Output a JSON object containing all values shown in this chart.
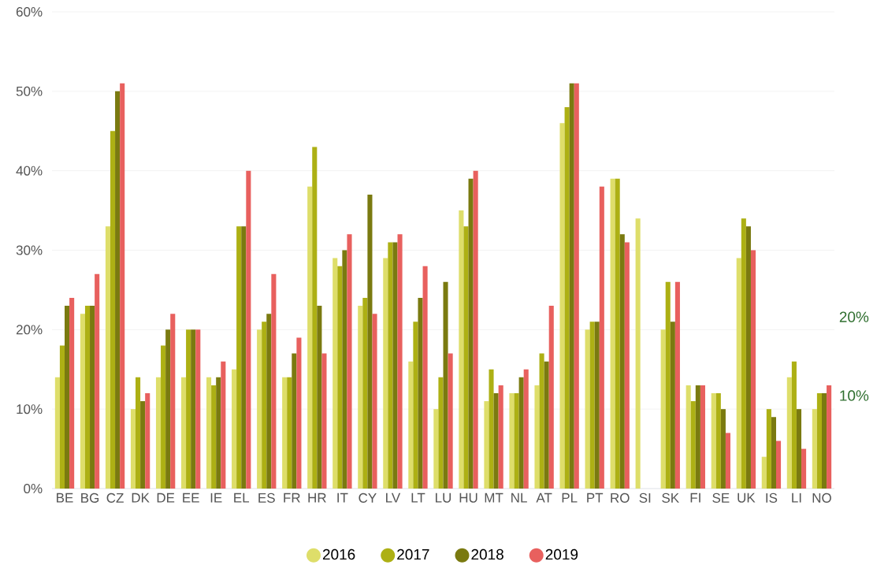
{
  "chart_data": {
    "type": "bar",
    "categories": [
      "BE",
      "BG",
      "CZ",
      "DK",
      "DE",
      "EE",
      "IE",
      "EL",
      "ES",
      "FR",
      "HR",
      "IT",
      "CY",
      "LV",
      "LT",
      "LU",
      "HU",
      "MT",
      "NL",
      "AT",
      "PL",
      "PT",
      "RO",
      "SI",
      "SK",
      "FI",
      "SE",
      "UK",
      "IS",
      "LI",
      "NO"
    ],
    "series": [
      {
        "name": "2016",
        "color": "#dede6a",
        "values": [
          14,
          22,
          33,
          10,
          14,
          14,
          14,
          15,
          20,
          14,
          38,
          29,
          23,
          29,
          16,
          10,
          35,
          11,
          12,
          13,
          46,
          20,
          39,
          34,
          20,
          13,
          12,
          29,
          4,
          14,
          10
        ]
      },
      {
        "name": "2017",
        "color": "#adb014",
        "values": [
          18,
          23,
          45,
          14,
          18,
          20,
          13,
          33,
          21,
          14,
          43,
          28,
          24,
          31,
          21,
          14,
          33,
          15,
          12,
          17,
          48,
          21,
          39,
          null,
          26,
          11,
          12,
          34,
          10,
          16,
          12
        ]
      },
      {
        "name": "2018",
        "color": "#7a7a10",
        "values": [
          23,
          23,
          50,
          11,
          20,
          20,
          14,
          33,
          22,
          17,
          23,
          30,
          37,
          31,
          24,
          26,
          39,
          12,
          14,
          16,
          51,
          21,
          32,
          null,
          21,
          13,
          10,
          33,
          9,
          10,
          12
        ]
      },
      {
        "name": "2019",
        "color": "#e8605e",
        "values": [
          24,
          27,
          51,
          12,
          22,
          20,
          16,
          40,
          27,
          19,
          17,
          32,
          22,
          32,
          28,
          17,
          40,
          13,
          15,
          23,
          51,
          38,
          31,
          null,
          26,
          13,
          7,
          30,
          6,
          5,
          13
        ]
      }
    ],
    "ylim": [
      0,
      60
    ],
    "yticks": [
      {
        "value": 0,
        "label": "0%"
      },
      {
        "value": 10,
        "label": "10%"
      },
      {
        "value": 20,
        "label": "20%"
      },
      {
        "value": 30,
        "label": "30%"
      },
      {
        "value": 40,
        "label": "40%"
      },
      {
        "value": 50,
        "label": "50%"
      },
      {
        "value": 60,
        "label": "60%"
      }
    ],
    "grid": "y",
    "legend": "bottom",
    "annotations": [
      "20%",
      "10%"
    ]
  }
}
